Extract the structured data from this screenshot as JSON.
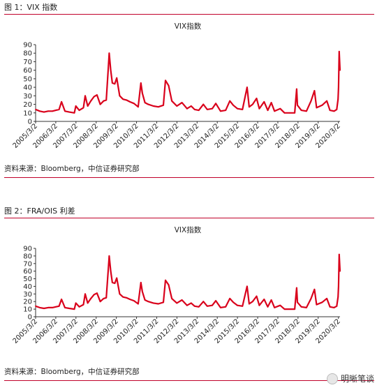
{
  "figures": [
    {
      "caption": "图 1：VIX 指数",
      "source": "资料来源：Bloomberg，中信证券研究部"
    },
    {
      "caption": "图 2：FRA/OIS 利差",
      "source": "资料来源：Bloomberg，中信证券研究部"
    }
  ],
  "watermark": {
    "text": "明晰笔谈",
    "icon": "wechat-bubble-icon"
  },
  "chart_data": [
    {
      "type": "line",
      "title": "VIX指数",
      "xlabel": "",
      "ylabel": "",
      "ylim": [
        0,
        90
      ],
      "yticks": [
        0,
        10,
        20,
        30,
        40,
        50,
        60,
        70,
        80,
        90
      ],
      "xlim": [
        "2005-03-02",
        "2020-03-31"
      ],
      "xtick_labels": [
        "2005/3/2",
        "2006/3/2",
        "2007/3/2",
        "2008/3/2",
        "2009/3/2",
        "2010/3/2",
        "2011/3/2",
        "2012/3/2",
        "2013/3/2",
        "2014/3/2",
        "2015/3/2",
        "2016/3/2",
        "2017/3/2",
        "2018/3/2",
        "2019/3/2",
        "2020/3/2"
      ],
      "grid": false,
      "color": "#d9001b",
      "series": [
        {
          "x": [
            "2005-03-02",
            "2005-05-15",
            "2005-08-01",
            "2005-10-15",
            "2006-01-01",
            "2006-03-02",
            "2006-05-01",
            "2006-06-14",
            "2006-08-15",
            "2006-11-01",
            "2007-02-01",
            "2007-02-28",
            "2007-05-01",
            "2007-07-15",
            "2007-08-16",
            "2007-10-01",
            "2007-11-26",
            "2008-01-22",
            "2008-03-17",
            "2008-05-15",
            "2008-07-15",
            "2008-09-01",
            "2008-10-10",
            "2008-10-24",
            "2008-11-20",
            "2008-12-20",
            "2009-02-01",
            "2009-03-09",
            "2009-05-01",
            "2009-07-01",
            "2009-09-01",
            "2009-11-01",
            "2010-01-15",
            "2010-04-01",
            "2010-05-20",
            "2010-06-15",
            "2010-08-01",
            "2010-10-01",
            "2011-01-01",
            "2011-04-01",
            "2011-07-01",
            "2011-08-08",
            "2011-10-03",
            "2011-12-01",
            "2012-03-01",
            "2012-06-01",
            "2012-09-01",
            "2012-11-15",
            "2013-01-15",
            "2013-04-01",
            "2013-06-24",
            "2013-09-01",
            "2013-12-01",
            "2014-02-03",
            "2014-05-01",
            "2014-08-01",
            "2014-10-15",
            "2014-12-16",
            "2015-03-01",
            "2015-06-01",
            "2015-08-24",
            "2015-10-01",
            "2015-12-01",
            "2016-02-11",
            "2016-04-01",
            "2016-06-27",
            "2016-09-01",
            "2016-11-04",
            "2017-01-01",
            "2017-04-13",
            "2017-07-01",
            "2017-10-01",
            "2018-01-01",
            "2018-02-05",
            "2018-02-20",
            "2018-05-01",
            "2018-08-01",
            "2018-10-24",
            "2018-12-24",
            "2019-02-01",
            "2019-05-13",
            "2019-08-05",
            "2019-10-01",
            "2019-12-15",
            "2020-02-01",
            "2020-02-24",
            "2020-03-05",
            "2020-03-16",
            "2020-03-31"
          ],
          "y": [
            14,
            12,
            11,
            12,
            12,
            13,
            14,
            23,
            12,
            11,
            10,
            18,
            13,
            16,
            30,
            18,
            24,
            29,
            31,
            20,
            24,
            25,
            65,
            80,
            60,
            45,
            44,
            51,
            30,
            26,
            25,
            23,
            21,
            17,
            45,
            33,
            22,
            20,
            18,
            17,
            19,
            48,
            42,
            24,
            18,
            22,
            15,
            18,
            14,
            13,
            20,
            14,
            15,
            21,
            12,
            13,
            24,
            19,
            15,
            14,
            40,
            17,
            20,
            27,
            15,
            23,
            13,
            22,
            12,
            15,
            10,
            10,
            10,
            38,
            19,
            13,
            12,
            24,
            36,
            16,
            19,
            24,
            13,
            12,
            14,
            26,
            40,
            82,
            60
          ]
        }
      ]
    },
    {
      "type": "line",
      "title": "VIX指数",
      "xlabel": "",
      "ylabel": "",
      "ylim": [
        0,
        90
      ],
      "yticks": [
        0,
        10,
        20,
        30,
        40,
        50,
        60,
        70,
        80,
        90
      ],
      "xlim": [
        "2005-03-02",
        "2020-03-31"
      ],
      "xtick_labels": [
        "2005/3/2",
        "2006/3/2",
        "2007/3/2",
        "2008/3/2",
        "2009/3/2",
        "2010/3/2",
        "2011/3/2",
        "2012/3/2",
        "2013/3/2",
        "2014/3/2",
        "2015/3/2",
        "2016/3/2",
        "2017/3/2",
        "2018/3/2",
        "2019/3/2",
        "2020/3/2"
      ],
      "grid": false,
      "color": "#d9001b",
      "series": [
        {
          "x": [
            "2005-03-02",
            "2005-05-15",
            "2005-08-01",
            "2005-10-15",
            "2006-01-01",
            "2006-03-02",
            "2006-05-01",
            "2006-06-14",
            "2006-08-15",
            "2006-11-01",
            "2007-02-01",
            "2007-02-28",
            "2007-05-01",
            "2007-07-15",
            "2007-08-16",
            "2007-10-01",
            "2007-11-26",
            "2008-01-22",
            "2008-03-17",
            "2008-05-15",
            "2008-07-15",
            "2008-09-01",
            "2008-10-10",
            "2008-10-24",
            "2008-11-20",
            "2008-12-20",
            "2009-02-01",
            "2009-03-09",
            "2009-05-01",
            "2009-07-01",
            "2009-09-01",
            "2009-11-01",
            "2010-01-15",
            "2010-04-01",
            "2010-05-20",
            "2010-06-15",
            "2010-08-01",
            "2010-10-01",
            "2011-01-01",
            "2011-04-01",
            "2011-07-01",
            "2011-08-08",
            "2011-10-03",
            "2011-12-01",
            "2012-03-01",
            "2012-06-01",
            "2012-09-01",
            "2012-11-15",
            "2013-01-15",
            "2013-04-01",
            "2013-06-24",
            "2013-09-01",
            "2013-12-01",
            "2014-02-03",
            "2014-05-01",
            "2014-08-01",
            "2014-10-15",
            "2014-12-16",
            "2015-03-01",
            "2015-06-01",
            "2015-08-24",
            "2015-10-01",
            "2015-12-01",
            "2016-02-11",
            "2016-04-01",
            "2016-06-27",
            "2016-09-01",
            "2016-11-04",
            "2017-01-01",
            "2017-04-13",
            "2017-07-01",
            "2017-10-01",
            "2018-01-01",
            "2018-02-05",
            "2018-02-20",
            "2018-05-01",
            "2018-08-01",
            "2018-10-24",
            "2018-12-24",
            "2019-02-01",
            "2019-05-13",
            "2019-08-05",
            "2019-10-01",
            "2019-12-15",
            "2020-02-01",
            "2020-02-24",
            "2020-03-05",
            "2020-03-16",
            "2020-03-31"
          ],
          "y": [
            14,
            12,
            11,
            12,
            12,
            13,
            14,
            23,
            12,
            11,
            10,
            18,
            13,
            16,
            30,
            18,
            24,
            29,
            31,
            20,
            24,
            25,
            65,
            80,
            60,
            45,
            44,
            51,
            30,
            26,
            25,
            23,
            21,
            17,
            45,
            33,
            22,
            20,
            18,
            17,
            19,
            48,
            42,
            24,
            18,
            22,
            15,
            18,
            14,
            13,
            20,
            14,
            15,
            21,
            12,
            13,
            24,
            19,
            15,
            14,
            40,
            17,
            20,
            27,
            15,
            23,
            13,
            22,
            12,
            15,
            10,
            10,
            10,
            38,
            19,
            13,
            12,
            24,
            36,
            16,
            19,
            24,
            13,
            12,
            14,
            26,
            40,
            82,
            60
          ]
        }
      ]
    }
  ]
}
